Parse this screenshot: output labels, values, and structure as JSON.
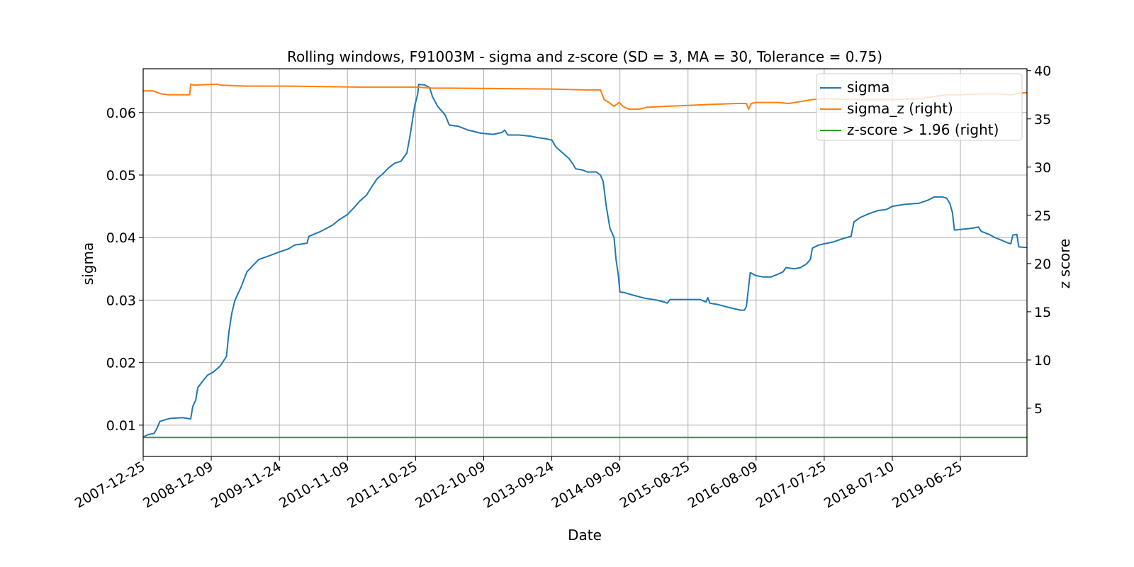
{
  "chart_data": {
    "type": "line",
    "title": "Rolling windows, F91003M - sigma and z-score (SD = 3, MA = 30, Tolerance  = 0.75)",
    "xlabel": "Date",
    "ylabel": "sigma",
    "ylabel_right": "z score",
    "x_ticks": [
      "2007-12-25",
      "2008-12-09",
      "2009-11-24",
      "2010-11-09",
      "2011-10-25",
      "2012-10-09",
      "2013-09-24",
      "2014-09-09",
      "2015-08-25",
      "2016-08-09",
      "2017-07-25",
      "2018-07-10",
      "2019-06-25"
    ],
    "xlim": [
      "2007-12-25",
      "2020-06-01"
    ],
    "ylim": [
      0.005,
      0.067
    ],
    "ylim_right": [
      0,
      40.2
    ],
    "y_ticks": [
      "0.01",
      "0.02",
      "0.03",
      "0.04",
      "0.05",
      "0.06"
    ],
    "y_ticks_right": [
      "5",
      "10",
      "15",
      "20",
      "25",
      "30",
      "35",
      "40"
    ],
    "grid": true,
    "legend_position": "top-right",
    "series": [
      {
        "name": "sigma",
        "axis": "left",
        "color": "#1f77b4",
        "points": [
          [
            "2007-12-25",
            0.0081
          ],
          [
            "2008-01-20",
            0.0085
          ],
          [
            "2008-02-20",
            0.0087
          ],
          [
            "2008-03-05",
            0.0095
          ],
          [
            "2008-03-20",
            0.0106
          ],
          [
            "2008-04-20",
            0.0109
          ],
          [
            "2008-05-15",
            0.0111
          ],
          [
            "2008-07-15",
            0.0112
          ],
          [
            "2008-08-25",
            0.011
          ],
          [
            "2008-09-05",
            0.013
          ],
          [
            "2008-09-20",
            0.014
          ],
          [
            "2008-10-01",
            0.016
          ],
          [
            "2008-10-25",
            0.017
          ],
          [
            "2008-11-20",
            0.018
          ],
          [
            "2008-12-20",
            0.0185
          ],
          [
            "2009-01-25",
            0.0195
          ],
          [
            "2009-02-25",
            0.021
          ],
          [
            "2009-03-10",
            0.025
          ],
          [
            "2009-03-25",
            0.028
          ],
          [
            "2009-04-10",
            0.03
          ],
          [
            "2009-05-10",
            0.032
          ],
          [
            "2009-06-10",
            0.0345
          ],
          [
            "2009-07-10",
            0.0355
          ],
          [
            "2009-08-10",
            0.0365
          ],
          [
            "2009-09-25",
            0.037
          ],
          [
            "2009-11-24",
            0.0377
          ],
          [
            "2010-01-10",
            0.0382
          ],
          [
            "2010-02-10",
            0.0388
          ],
          [
            "2010-04-15",
            0.0391
          ],
          [
            "2010-04-25",
            0.0402
          ],
          [
            "2010-06-25",
            0.041
          ],
          [
            "2010-08-25",
            0.042
          ],
          [
            "2010-09-25",
            0.0428
          ],
          [
            "2010-11-09",
            0.0437
          ],
          [
            "2010-12-10",
            0.0447
          ],
          [
            "2011-01-10",
            0.0458
          ],
          [
            "2011-02-15",
            0.0468
          ],
          [
            "2011-03-15",
            0.0482
          ],
          [
            "2011-04-10",
            0.0494
          ],
          [
            "2011-05-10",
            0.0502
          ],
          [
            "2011-06-10",
            0.0512
          ],
          [
            "2011-07-10",
            0.0519
          ],
          [
            "2011-08-10",
            0.0522
          ],
          [
            "2011-09-10",
            0.0535
          ],
          [
            "2011-09-25",
            0.056
          ],
          [
            "2011-10-05",
            0.058
          ],
          [
            "2011-10-20",
            0.061
          ],
          [
            "2011-11-05",
            0.063
          ],
          [
            "2011-11-10",
            0.0645
          ],
          [
            "2011-12-10",
            0.0644
          ],
          [
            "2012-01-05",
            0.064
          ],
          [
            "2012-01-20",
            0.0625
          ],
          [
            "2012-02-15",
            0.061
          ],
          [
            "2012-03-25",
            0.0596
          ],
          [
            "2012-04-15",
            0.058
          ],
          [
            "2012-06-01",
            0.0578
          ],
          [
            "2012-07-20",
            0.0572
          ],
          [
            "2012-09-25",
            0.0567
          ],
          [
            "2012-11-25",
            0.0565
          ],
          [
            "2013-01-10",
            0.0568
          ],
          [
            "2013-01-25",
            0.0572
          ],
          [
            "2013-02-10",
            0.0564
          ],
          [
            "2013-04-10",
            0.0564
          ],
          [
            "2013-06-10",
            0.0562
          ],
          [
            "2013-07-10",
            0.056
          ],
          [
            "2013-08-25",
            0.0558
          ],
          [
            "2013-09-24",
            0.0556
          ],
          [
            "2013-10-15",
            0.0545
          ],
          [
            "2013-11-20",
            0.0535
          ],
          [
            "2013-12-20",
            0.0527
          ],
          [
            "2014-01-10",
            0.0518
          ],
          [
            "2014-01-25",
            0.051
          ],
          [
            "2014-03-01",
            0.0508
          ],
          [
            "2014-03-25",
            0.0505
          ],
          [
            "2014-05-10",
            0.0505
          ],
          [
            "2014-06-01",
            0.05
          ],
          [
            "2014-06-15",
            0.049
          ],
          [
            "2014-07-01",
            0.045
          ],
          [
            "2014-07-20",
            0.0415
          ],
          [
            "2014-08-10",
            0.04
          ],
          [
            "2014-08-20",
            0.0365
          ],
          [
            "2014-09-01",
            0.034
          ],
          [
            "2014-09-09",
            0.0313
          ],
          [
            "2014-10-01",
            0.0312
          ],
          [
            "2014-11-15",
            0.0308
          ],
          [
            "2015-01-15",
            0.0303
          ],
          [
            "2015-03-15",
            0.03
          ],
          [
            "2015-04-25",
            0.0297
          ],
          [
            "2015-05-10",
            0.0295
          ],
          [
            "2015-05-25",
            0.0301
          ],
          [
            "2015-08-25",
            0.0301
          ],
          [
            "2015-10-25",
            0.0301
          ],
          [
            "2015-11-25",
            0.0297
          ],
          [
            "2015-12-05",
            0.0304
          ],
          [
            "2015-12-15",
            0.0295
          ],
          [
            "2016-01-25",
            0.0293
          ],
          [
            "2016-03-25",
            0.0288
          ],
          [
            "2016-05-20",
            0.0284
          ],
          [
            "2016-06-10",
            0.0284
          ],
          [
            "2016-06-20",
            0.029
          ],
          [
            "2016-07-01",
            0.032
          ],
          [
            "2016-07-10",
            0.0344
          ],
          [
            "2016-08-09",
            0.0339
          ],
          [
            "2016-09-15",
            0.0337
          ],
          [
            "2016-10-25",
            0.0337
          ],
          [
            "2016-11-25",
            0.0341
          ],
          [
            "2016-12-25",
            0.0345
          ],
          [
            "2017-01-10",
            0.0352
          ],
          [
            "2017-02-20",
            0.035
          ],
          [
            "2017-03-25",
            0.0352
          ],
          [
            "2017-04-25",
            0.0358
          ],
          [
            "2017-05-15",
            0.0365
          ],
          [
            "2017-05-25",
            0.0383
          ],
          [
            "2017-06-25",
            0.0388
          ],
          [
            "2017-07-25",
            0.039
          ],
          [
            "2017-09-10",
            0.0393
          ],
          [
            "2017-10-25",
            0.0398
          ],
          [
            "2017-12-10",
            0.0402
          ],
          [
            "2017-12-25",
            0.0425
          ],
          [
            "2018-01-25",
            0.0432
          ],
          [
            "2018-03-10",
            0.0438
          ],
          [
            "2018-04-25",
            0.0443
          ],
          [
            "2018-06-10",
            0.0445
          ],
          [
            "2018-07-10",
            0.045
          ],
          [
            "2018-09-10",
            0.0453
          ],
          [
            "2018-11-25",
            0.0455
          ],
          [
            "2019-01-10",
            0.046
          ],
          [
            "2019-02-10",
            0.0465
          ],
          [
            "2019-03-25",
            0.0465
          ],
          [
            "2019-04-15",
            0.0463
          ],
          [
            "2019-05-01",
            0.0455
          ],
          [
            "2019-05-15",
            0.044
          ],
          [
            "2019-05-25",
            0.0412
          ],
          [
            "2019-06-25",
            0.0413
          ],
          [
            "2019-08-25",
            0.0415
          ],
          [
            "2019-09-25",
            0.0417
          ],
          [
            "2019-10-10",
            0.041
          ],
          [
            "2019-11-20",
            0.0405
          ],
          [
            "2019-12-20",
            0.04
          ],
          [
            "2020-01-20",
            0.0396
          ],
          [
            "2020-02-20",
            0.0392
          ],
          [
            "2020-03-10",
            0.039
          ],
          [
            "2020-03-20",
            0.0404
          ],
          [
            "2020-04-10",
            0.0405
          ],
          [
            "2020-04-20",
            0.0385
          ],
          [
            "2020-06-01",
            0.0384
          ]
        ]
      },
      {
        "name": "sigma_z (right)",
        "axis": "right",
        "color": "#ff7f0e",
        "points": [
          [
            "2007-12-25",
            37.9
          ],
          [
            "2008-02-15",
            37.9
          ],
          [
            "2008-03-25",
            37.6
          ],
          [
            "2008-05-01",
            37.5
          ],
          [
            "2008-08-20",
            37.5
          ],
          [
            "2008-08-25",
            38.6
          ],
          [
            "2008-09-10",
            38.5
          ],
          [
            "2009-01-10",
            38.6
          ],
          [
            "2009-01-25",
            38.5
          ],
          [
            "2009-06-01",
            38.4
          ],
          [
            "2010-01-01",
            38.4
          ],
          [
            "2011-01-01",
            38.3
          ],
          [
            "2011-10-25",
            38.3
          ],
          [
            "2012-01-15",
            38.2
          ],
          [
            "2013-09-24",
            38.1
          ],
          [
            "2014-03-15",
            38.0
          ],
          [
            "2014-06-01",
            38.0
          ],
          [
            "2014-06-20",
            37.0
          ],
          [
            "2014-07-15",
            36.7
          ],
          [
            "2014-08-10",
            36.3
          ],
          [
            "2014-09-05",
            36.7
          ],
          [
            "2014-09-25",
            36.3
          ],
          [
            "2014-10-25",
            36.0
          ],
          [
            "2014-12-15",
            36.0
          ],
          [
            "2015-01-25",
            36.2
          ],
          [
            "2015-04-25",
            36.3
          ],
          [
            "2015-08-25",
            36.4
          ],
          [
            "2015-12-25",
            36.5
          ],
          [
            "2016-04-25",
            36.6
          ],
          [
            "2016-06-20",
            36.6
          ],
          [
            "2016-07-01",
            36.0
          ],
          [
            "2016-07-15",
            36.6
          ],
          [
            "2016-08-09",
            36.7
          ],
          [
            "2016-12-01",
            36.7
          ],
          [
            "2017-01-25",
            36.6
          ],
          [
            "2017-05-25",
            37.0
          ],
          [
            "2017-07-25",
            37.1
          ],
          [
            "2018-01-01",
            37.0
          ],
          [
            "2018-04-25",
            37.0
          ],
          [
            "2018-07-10",
            37.0
          ],
          [
            "2018-12-01",
            37.1
          ],
          [
            "2019-02-01",
            37.3
          ],
          [
            "2019-04-15",
            37.5
          ],
          [
            "2019-06-25",
            37.5
          ],
          [
            "2019-10-01",
            37.6
          ],
          [
            "2020-01-01",
            37.6
          ],
          [
            "2020-03-15",
            37.5
          ],
          [
            "2020-05-01",
            37.7
          ],
          [
            "2020-06-01",
            37.7
          ]
        ]
      },
      {
        "name": "z-score > 1.96 (right)",
        "axis": "right",
        "color": "#2ca02c",
        "points": [
          [
            "2007-12-25",
            1.96
          ],
          [
            "2020-06-01",
            1.96
          ]
        ]
      }
    ]
  }
}
